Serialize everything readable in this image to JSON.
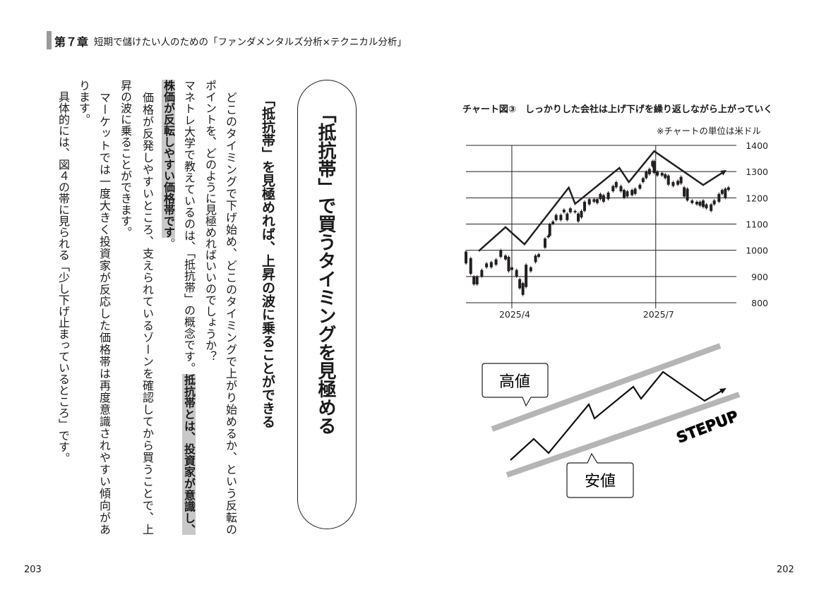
{
  "header": {
    "chapter": "第７章",
    "subtitle": "短期で儲けたい人のための「ファンダメンタルズ分析×テクニカル分析」"
  },
  "page_numbers": {
    "left": "203",
    "right": "202"
  },
  "section": {
    "title": "「抵抗帯」で買うタイミングを見極める",
    "subheading": "「抵抗帯」を見極めれば、上昇の波に乗ることができる"
  },
  "body": {
    "c1": "　どこのタイミングで下げ始め、どこのタイミングで上がり始めるか、という反転の",
    "c2": "ポイントを、どのように見極めればいいのでしょうか？",
    "c3a": "マネトレ大学で教えているのは、「抵抗帯」の概念です。",
    "c3b": "抵抗帯とは、投資家が意識し、",
    "c4a": "株価が反転しやすい価格帯です",
    "c4b": "。",
    "c5": "　価格が反発しやすいところ、支えられているゾーンを確認してから買うことで、上",
    "c6": "昇の波に乗ることができます。",
    "c7": "　マーケットでは一度大きく投資家が反応した価格帯は再度意識されやすい傾向があ",
    "c8": "ります。",
    "c9": "　具体的には、図４の帯に見られる「少し下げ止まっているところ」です。"
  },
  "chart_data": {
    "type": "candlestick",
    "title": "チャート図③　しっかりした会社は上げ下げを繰り返しながら上がっていく",
    "note": "※チャートの単位は米ドル",
    "ylim": [
      800,
      1400
    ],
    "yticks": [
      800,
      900,
      1000,
      1100,
      1200,
      1300,
      1400
    ],
    "xlim": [
      "2025-03-03",
      "2025-08-21"
    ],
    "xticks": [
      {
        "date": "2025-04-01",
        "label": "2025/4"
      },
      {
        "date": "2025-07-01",
        "label": "2025/7"
      }
    ],
    "grid": true,
    "y_axis_side": "right",
    "candles_low_high": [
      [
        "2025-03-03",
        950,
        995
      ],
      [
        "2025-03-06",
        910,
        970
      ],
      [
        "2025-03-08",
        870,
        900
      ],
      [
        "2025-03-10",
        870,
        900
      ],
      [
        "2025-03-13",
        900,
        925
      ],
      [
        "2025-03-16",
        935,
        950
      ],
      [
        "2025-03-19",
        935,
        955
      ],
      [
        "2025-03-22",
        945,
        965
      ],
      [
        "2025-03-25",
        975,
        1000
      ],
      [
        "2025-03-28",
        965,
        980
      ],
      [
        "2025-03-30",
        920,
        975
      ],
      [
        "2025-04-01",
        925,
        935
      ],
      [
        "2025-04-04",
        900,
        925
      ],
      [
        "2025-04-06",
        855,
        890
      ],
      [
        "2025-04-08",
        830,
        875
      ],
      [
        "2025-04-10",
        860,
        945
      ],
      [
        "2025-04-13",
        920,
        935
      ],
      [
        "2025-04-16",
        955,
        980
      ],
      [
        "2025-04-18",
        975,
        985
      ],
      [
        "2025-04-22",
        1010,
        1045
      ],
      [
        "2025-04-24",
        1050,
        1055
      ],
      [
        "2025-04-25",
        1055,
        1100
      ],
      [
        "2025-04-27",
        1100,
        1110
      ],
      [
        "2025-04-29",
        1115,
        1135
      ],
      [
        "2025-05-02",
        1115,
        1135
      ],
      [
        "2025-05-04",
        1145,
        1155
      ],
      [
        "2025-05-06",
        1115,
        1140
      ],
      [
        "2025-05-08",
        1145,
        1160
      ],
      [
        "2025-05-11",
        1145,
        1150
      ],
      [
        "2025-05-13",
        1110,
        1140
      ],
      [
        "2025-05-15",
        1125,
        1150
      ],
      [
        "2025-05-17",
        1150,
        1185
      ],
      [
        "2025-05-20",
        1175,
        1195
      ],
      [
        "2025-05-23",
        1185,
        1195
      ],
      [
        "2025-05-25",
        1180,
        1195
      ],
      [
        "2025-05-27",
        1195,
        1215
      ],
      [
        "2025-05-29",
        1185,
        1210
      ],
      [
        "2025-06-01",
        1195,
        1220
      ],
      [
        "2025-06-04",
        1225,
        1245
      ],
      [
        "2025-06-06",
        1240,
        1260
      ],
      [
        "2025-06-09",
        1225,
        1245
      ],
      [
        "2025-06-11",
        1200,
        1230
      ],
      [
        "2025-06-13",
        1205,
        1225
      ],
      [
        "2025-06-16",
        1210,
        1230
      ],
      [
        "2025-06-18",
        1215,
        1235
      ],
      [
        "2025-06-21",
        1235,
        1250
      ],
      [
        "2025-06-23",
        1260,
        1275
      ],
      [
        "2025-06-25",
        1275,
        1300
      ],
      [
        "2025-06-27",
        1290,
        1310
      ],
      [
        "2025-06-29",
        1320,
        1340
      ],
      [
        "2025-06-30",
        1295,
        1340
      ],
      [
        "2025-07-02",
        1285,
        1300
      ],
      [
        "2025-07-05",
        1285,
        1295
      ],
      [
        "2025-07-07",
        1275,
        1290
      ],
      [
        "2025-07-09",
        1250,
        1285
      ],
      [
        "2025-07-12",
        1245,
        1260
      ],
      [
        "2025-07-15",
        1250,
        1265
      ],
      [
        "2025-07-17",
        1255,
        1280
      ],
      [
        "2025-07-19",
        1205,
        1240
      ],
      [
        "2025-07-21",
        1190,
        1235
      ],
      [
        "2025-07-24",
        1180,
        1190
      ],
      [
        "2025-07-27",
        1175,
        1185
      ],
      [
        "2025-07-29",
        1170,
        1185
      ],
      [
        "2025-07-31",
        1165,
        1190
      ],
      [
        "2025-08-02",
        1160,
        1175
      ],
      [
        "2025-08-05",
        1150,
        1175
      ],
      [
        "2025-08-07",
        1175,
        1190
      ],
      [
        "2025-08-10",
        1185,
        1215
      ],
      [
        "2025-08-12",
        1215,
        1230
      ],
      [
        "2025-08-14",
        1200,
        1235
      ],
      [
        "2025-08-16",
        1230,
        1240
      ]
    ],
    "trend_line": [
      [
        "2025-03-11",
        997
      ],
      [
        "2025-03-28",
        1088
      ],
      [
        "2025-04-09",
        1023
      ],
      [
        "2025-05-07",
        1239
      ],
      [
        "2025-05-11",
        1177
      ],
      [
        "2025-06-08",
        1314
      ],
      [
        "2025-06-14",
        1260
      ],
      [
        "2025-06-30",
        1378
      ],
      [
        "2025-07-31",
        1249
      ],
      [
        "2025-08-14",
        1303
      ]
    ],
    "trend_line_end": "arrow",
    "colors": {
      "candles": "#231f20",
      "grid": "#231f20",
      "trend": "#231f20"
    }
  },
  "diagram": {
    "label_high": "高値",
    "label_low": "安値",
    "label_stepup": "STEPUP",
    "colors": {
      "band": "#b5b5b5",
      "line": "#111111"
    }
  }
}
